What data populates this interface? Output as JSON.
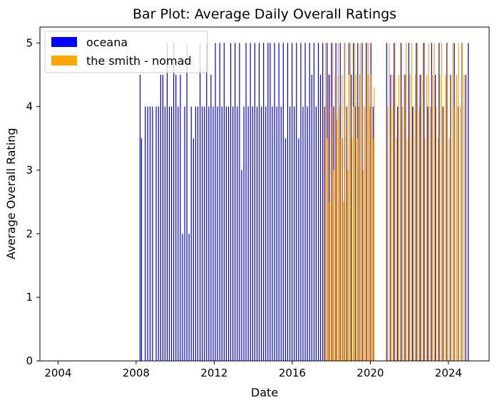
{
  "chart_data": {
    "type": "bar",
    "title": "Bar Plot: Average Daily Overall Ratings",
    "xlabel": "Date",
    "ylabel": "Average Overall Rating",
    "x_axis": "date",
    "xlim": [
      "2003-01-27",
      "2026-02-01"
    ],
    "ylim": [
      0,
      5.25
    ],
    "x_ticks": [
      {
        "date": "2004-01-01",
        "label": "2004"
      },
      {
        "date": "2008-01-01",
        "label": "2008"
      },
      {
        "date": "2012-01-01",
        "label": "2012"
      },
      {
        "date": "2016-01-01",
        "label": "2016"
      },
      {
        "date": "2020-01-01",
        "label": "2020"
      },
      {
        "date": "2024-01-01",
        "label": "2024"
      }
    ],
    "y_ticks": [
      0,
      1,
      2,
      3,
      4,
      5
    ],
    "grid": false,
    "legend_position": "top-left",
    "series": [
      {
        "name": "oceana",
        "color": "#0000ff",
        "points": [
          [
            "2008-03-15",
            4.5
          ],
          [
            "2008-04-10",
            3.5
          ],
          [
            "2008-06-20",
            4.0
          ],
          [
            "2008-08-05",
            4.0
          ],
          [
            "2008-09-18",
            4.0
          ],
          [
            "2008-11-02",
            4.0
          ],
          [
            "2009-01-10",
            4.0
          ],
          [
            "2009-02-22",
            4.0
          ],
          [
            "2009-04-05",
            4.5
          ],
          [
            "2009-05-15",
            4.5
          ],
          [
            "2009-06-25",
            4.0
          ],
          [
            "2009-08-04",
            5.0
          ],
          [
            "2009-09-14",
            4.0
          ],
          [
            "2009-10-25",
            4.0
          ],
          [
            "2009-12-05",
            5.0
          ],
          [
            "2010-01-15",
            4.5
          ],
          [
            "2010-02-25",
            4.0
          ],
          [
            "2010-04-07",
            4.5
          ],
          [
            "2010-05-18",
            2.0
          ],
          [
            "2010-06-28",
            4.0
          ],
          [
            "2010-08-08",
            5.0
          ],
          [
            "2010-09-18",
            2.0
          ],
          [
            "2010-10-29",
            4.0
          ],
          [
            "2010-12-09",
            3.5
          ],
          [
            "2011-01-19",
            4.0
          ],
          [
            "2011-03-01",
            4.0
          ],
          [
            "2011-04-11",
            5.0
          ],
          [
            "2011-05-22",
            4.0
          ],
          [
            "2011-07-02",
            4.0
          ],
          [
            "2011-08-12",
            5.0
          ],
          [
            "2011-09-22",
            4.0
          ],
          [
            "2011-11-02",
            4.5
          ],
          [
            "2011-12-13",
            4.0
          ],
          [
            "2012-01-23",
            5.0
          ],
          [
            "2012-03-04",
            4.0
          ],
          [
            "2012-04-14",
            5.0
          ],
          [
            "2012-05-25",
            4.0
          ],
          [
            "2012-07-05",
            5.0
          ],
          [
            "2012-08-15",
            4.0
          ],
          [
            "2012-09-25",
            4.0
          ],
          [
            "2012-11-05",
            5.0
          ],
          [
            "2012-12-16",
            4.0
          ],
          [
            "2013-01-26",
            5.0
          ],
          [
            "2013-03-08",
            4.0
          ],
          [
            "2013-04-18",
            5.0
          ],
          [
            "2013-05-29",
            3.0
          ],
          [
            "2013-07-09",
            4.0
          ],
          [
            "2013-08-19",
            5.0
          ],
          [
            "2013-09-29",
            4.0
          ],
          [
            "2013-11-09",
            5.0
          ],
          [
            "2013-12-20",
            4.0
          ],
          [
            "2014-01-30",
            5.0
          ],
          [
            "2014-03-12",
            4.0
          ],
          [
            "2014-04-22",
            5.0
          ],
          [
            "2014-06-02",
            4.0
          ],
          [
            "2014-07-13",
            5.0
          ],
          [
            "2014-08-23",
            4.0
          ],
          [
            "2014-10-03",
            5.0
          ],
          [
            "2014-11-13",
            5.0
          ],
          [
            "2014-12-24",
            4.0
          ],
          [
            "2015-02-03",
            5.0
          ],
          [
            "2015-03-16",
            4.0
          ],
          [
            "2015-04-26",
            5.0
          ],
          [
            "2015-06-06",
            4.0
          ],
          [
            "2015-07-17",
            5.0
          ],
          [
            "2015-08-27",
            3.5
          ],
          [
            "2015-10-07",
            5.0
          ],
          [
            "2015-11-17",
            4.0
          ],
          [
            "2015-12-28",
            5.0
          ],
          [
            "2016-02-07",
            4.0
          ],
          [
            "2016-03-19",
            5.0
          ],
          [
            "2016-04-29",
            3.5
          ],
          [
            "2016-06-09",
            5.0
          ],
          [
            "2016-07-20",
            4.0
          ],
          [
            "2016-08-30",
            5.0
          ],
          [
            "2016-10-10",
            4.0
          ],
          [
            "2016-11-20",
            5.0
          ],
          [
            "2016-12-31",
            4.5
          ],
          [
            "2017-02-10",
            5.0
          ],
          [
            "2017-03-23",
            4.0
          ],
          [
            "2017-05-03",
            5.0
          ],
          [
            "2017-06-13",
            4.5
          ],
          [
            "2017-07-24",
            5.0
          ],
          [
            "2017-09-03",
            4.0
          ],
          [
            "2017-10-14",
            5.0
          ],
          [
            "2017-11-24",
            4.5
          ],
          [
            "2018-01-04",
            5.0
          ],
          [
            "2018-02-14",
            4.0
          ],
          [
            "2018-03-27",
            5.0
          ],
          [
            "2018-05-07",
            4.5
          ],
          [
            "2018-06-17",
            5.0
          ],
          [
            "2018-07-28",
            3.5
          ],
          [
            "2018-09-07",
            5.0
          ],
          [
            "2018-10-18",
            4.0
          ],
          [
            "2018-11-28",
            5.0
          ],
          [
            "2019-01-08",
            4.5
          ],
          [
            "2019-02-18",
            5.0
          ],
          [
            "2019-03-31",
            4.0
          ],
          [
            "2019-05-11",
            5.0
          ],
          [
            "2019-06-21",
            4.5
          ],
          [
            "2019-08-01",
            5.0
          ],
          [
            "2019-09-11",
            4.0
          ],
          [
            "2019-10-22",
            5.0
          ],
          [
            "2019-12-02",
            4.5
          ],
          [
            "2020-01-12",
            5.0
          ],
          [
            "2020-02-22",
            4.0
          ],
          [
            "2020-11-01",
            5.0
          ],
          [
            "2021-01-15",
            4.5
          ],
          [
            "2021-03-20",
            5.0
          ],
          [
            "2021-05-25",
            4.0
          ],
          [
            "2021-08-01",
            5.0
          ],
          [
            "2021-10-10",
            4.5
          ],
          [
            "2021-12-20",
            5.0
          ],
          [
            "2022-03-01",
            4.0
          ],
          [
            "2022-05-10",
            5.0
          ],
          [
            "2022-07-20",
            4.5
          ],
          [
            "2022-10-01",
            5.0
          ],
          [
            "2022-12-10",
            4.0
          ],
          [
            "2023-02-20",
            5.0
          ],
          [
            "2023-05-01",
            4.5
          ],
          [
            "2023-07-10",
            5.0
          ],
          [
            "2023-09-20",
            4.0
          ],
          [
            "2023-12-01",
            5.0
          ],
          [
            "2024-02-10",
            4.5
          ],
          [
            "2024-04-20",
            5.0
          ],
          [
            "2024-06-30",
            4.0
          ],
          [
            "2024-09-10",
            5.0
          ],
          [
            "2024-11-20",
            4.5
          ],
          [
            "2025-01-05",
            5.0
          ]
        ]
      },
      {
        "name": "the smith - nomad",
        "color": "#ffa500",
        "points": [
          [
            "2017-08-20",
            4.0
          ],
          [
            "2017-09-15",
            5.0
          ],
          [
            "2017-10-10",
            3.5
          ],
          [
            "2017-11-05",
            4.5
          ],
          [
            "2017-12-01",
            2.5
          ],
          [
            "2017-12-27",
            4.0
          ],
          [
            "2018-01-22",
            5.0
          ],
          [
            "2018-02-17",
            3.0
          ],
          [
            "2018-03-15",
            4.5
          ],
          [
            "2018-04-10",
            3.8
          ],
          [
            "2018-05-06",
            5.0
          ],
          [
            "2018-06-01",
            4.0
          ],
          [
            "2018-06-27",
            3.5
          ],
          [
            "2018-07-23",
            4.5
          ],
          [
            "2018-08-18",
            2.5
          ],
          [
            "2018-09-13",
            5.0
          ],
          [
            "2018-10-09",
            4.0
          ],
          [
            "2018-11-04",
            3.0
          ],
          [
            "2018-11-30",
            4.5
          ],
          [
            "2018-12-26",
            5.0
          ],
          [
            "2019-01-21",
            3.5
          ],
          [
            "2019-02-16",
            4.0
          ],
          [
            "2019-03-14",
            5.0
          ],
          [
            "2019-04-09",
            4.5
          ],
          [
            "2019-05-05",
            3.5
          ],
          [
            "2019-05-31",
            4.0
          ],
          [
            "2019-06-26",
            5.0
          ],
          [
            "2019-07-22",
            4.5
          ],
          [
            "2019-08-17",
            3.0
          ],
          [
            "2019-09-12",
            4.0
          ],
          [
            "2019-10-08",
            5.0
          ],
          [
            "2019-11-03",
            4.5
          ],
          [
            "2019-11-29",
            5.0
          ],
          [
            "2019-12-25",
            4.0
          ],
          [
            "2020-01-20",
            4.5
          ],
          [
            "2020-02-15",
            3.5
          ],
          [
            "2020-03-12",
            4.3
          ],
          [
            "2020-11-15",
            4.0
          ],
          [
            "2020-12-20",
            5.0
          ],
          [
            "2021-01-25",
            4.0
          ],
          [
            "2021-03-01",
            4.5
          ],
          [
            "2021-04-05",
            5.0
          ],
          [
            "2021-05-10",
            3.5
          ],
          [
            "2021-06-14",
            4.5
          ],
          [
            "2021-07-19",
            5.0
          ],
          [
            "2021-08-23",
            4.0
          ],
          [
            "2021-09-27",
            4.5
          ],
          [
            "2021-11-01",
            5.0
          ],
          [
            "2021-12-06",
            3.5
          ],
          [
            "2022-01-10",
            4.5
          ],
          [
            "2022-02-14",
            5.0
          ],
          [
            "2022-03-21",
            4.0
          ],
          [
            "2022-04-25",
            4.5
          ],
          [
            "2022-05-30",
            5.0
          ],
          [
            "2022-07-04",
            4.0
          ],
          [
            "2022-08-08",
            4.5
          ],
          [
            "2022-09-12",
            5.0
          ],
          [
            "2022-10-17",
            3.5
          ],
          [
            "2022-11-21",
            4.5
          ],
          [
            "2022-12-26",
            5.0
          ],
          [
            "2023-01-30",
            4.0
          ],
          [
            "2023-03-06",
            4.5
          ],
          [
            "2023-04-10",
            5.0
          ],
          [
            "2023-05-15",
            4.0
          ],
          [
            "2023-06-19",
            3.5
          ],
          [
            "2023-07-24",
            4.5
          ],
          [
            "2023-08-28",
            5.0
          ],
          [
            "2023-10-02",
            4.0
          ],
          [
            "2023-11-06",
            4.5
          ],
          [
            "2023-12-11",
            5.0
          ],
          [
            "2024-01-15",
            3.5
          ],
          [
            "2024-02-19",
            4.5
          ],
          [
            "2024-03-25",
            5.0
          ],
          [
            "2024-04-29",
            4.0
          ],
          [
            "2024-06-03",
            4.5
          ],
          [
            "2024-07-08",
            5.0
          ],
          [
            "2024-08-12",
            4.0
          ],
          [
            "2024-09-16",
            5.0
          ],
          [
            "2024-10-21",
            4.5
          ]
        ]
      }
    ]
  }
}
